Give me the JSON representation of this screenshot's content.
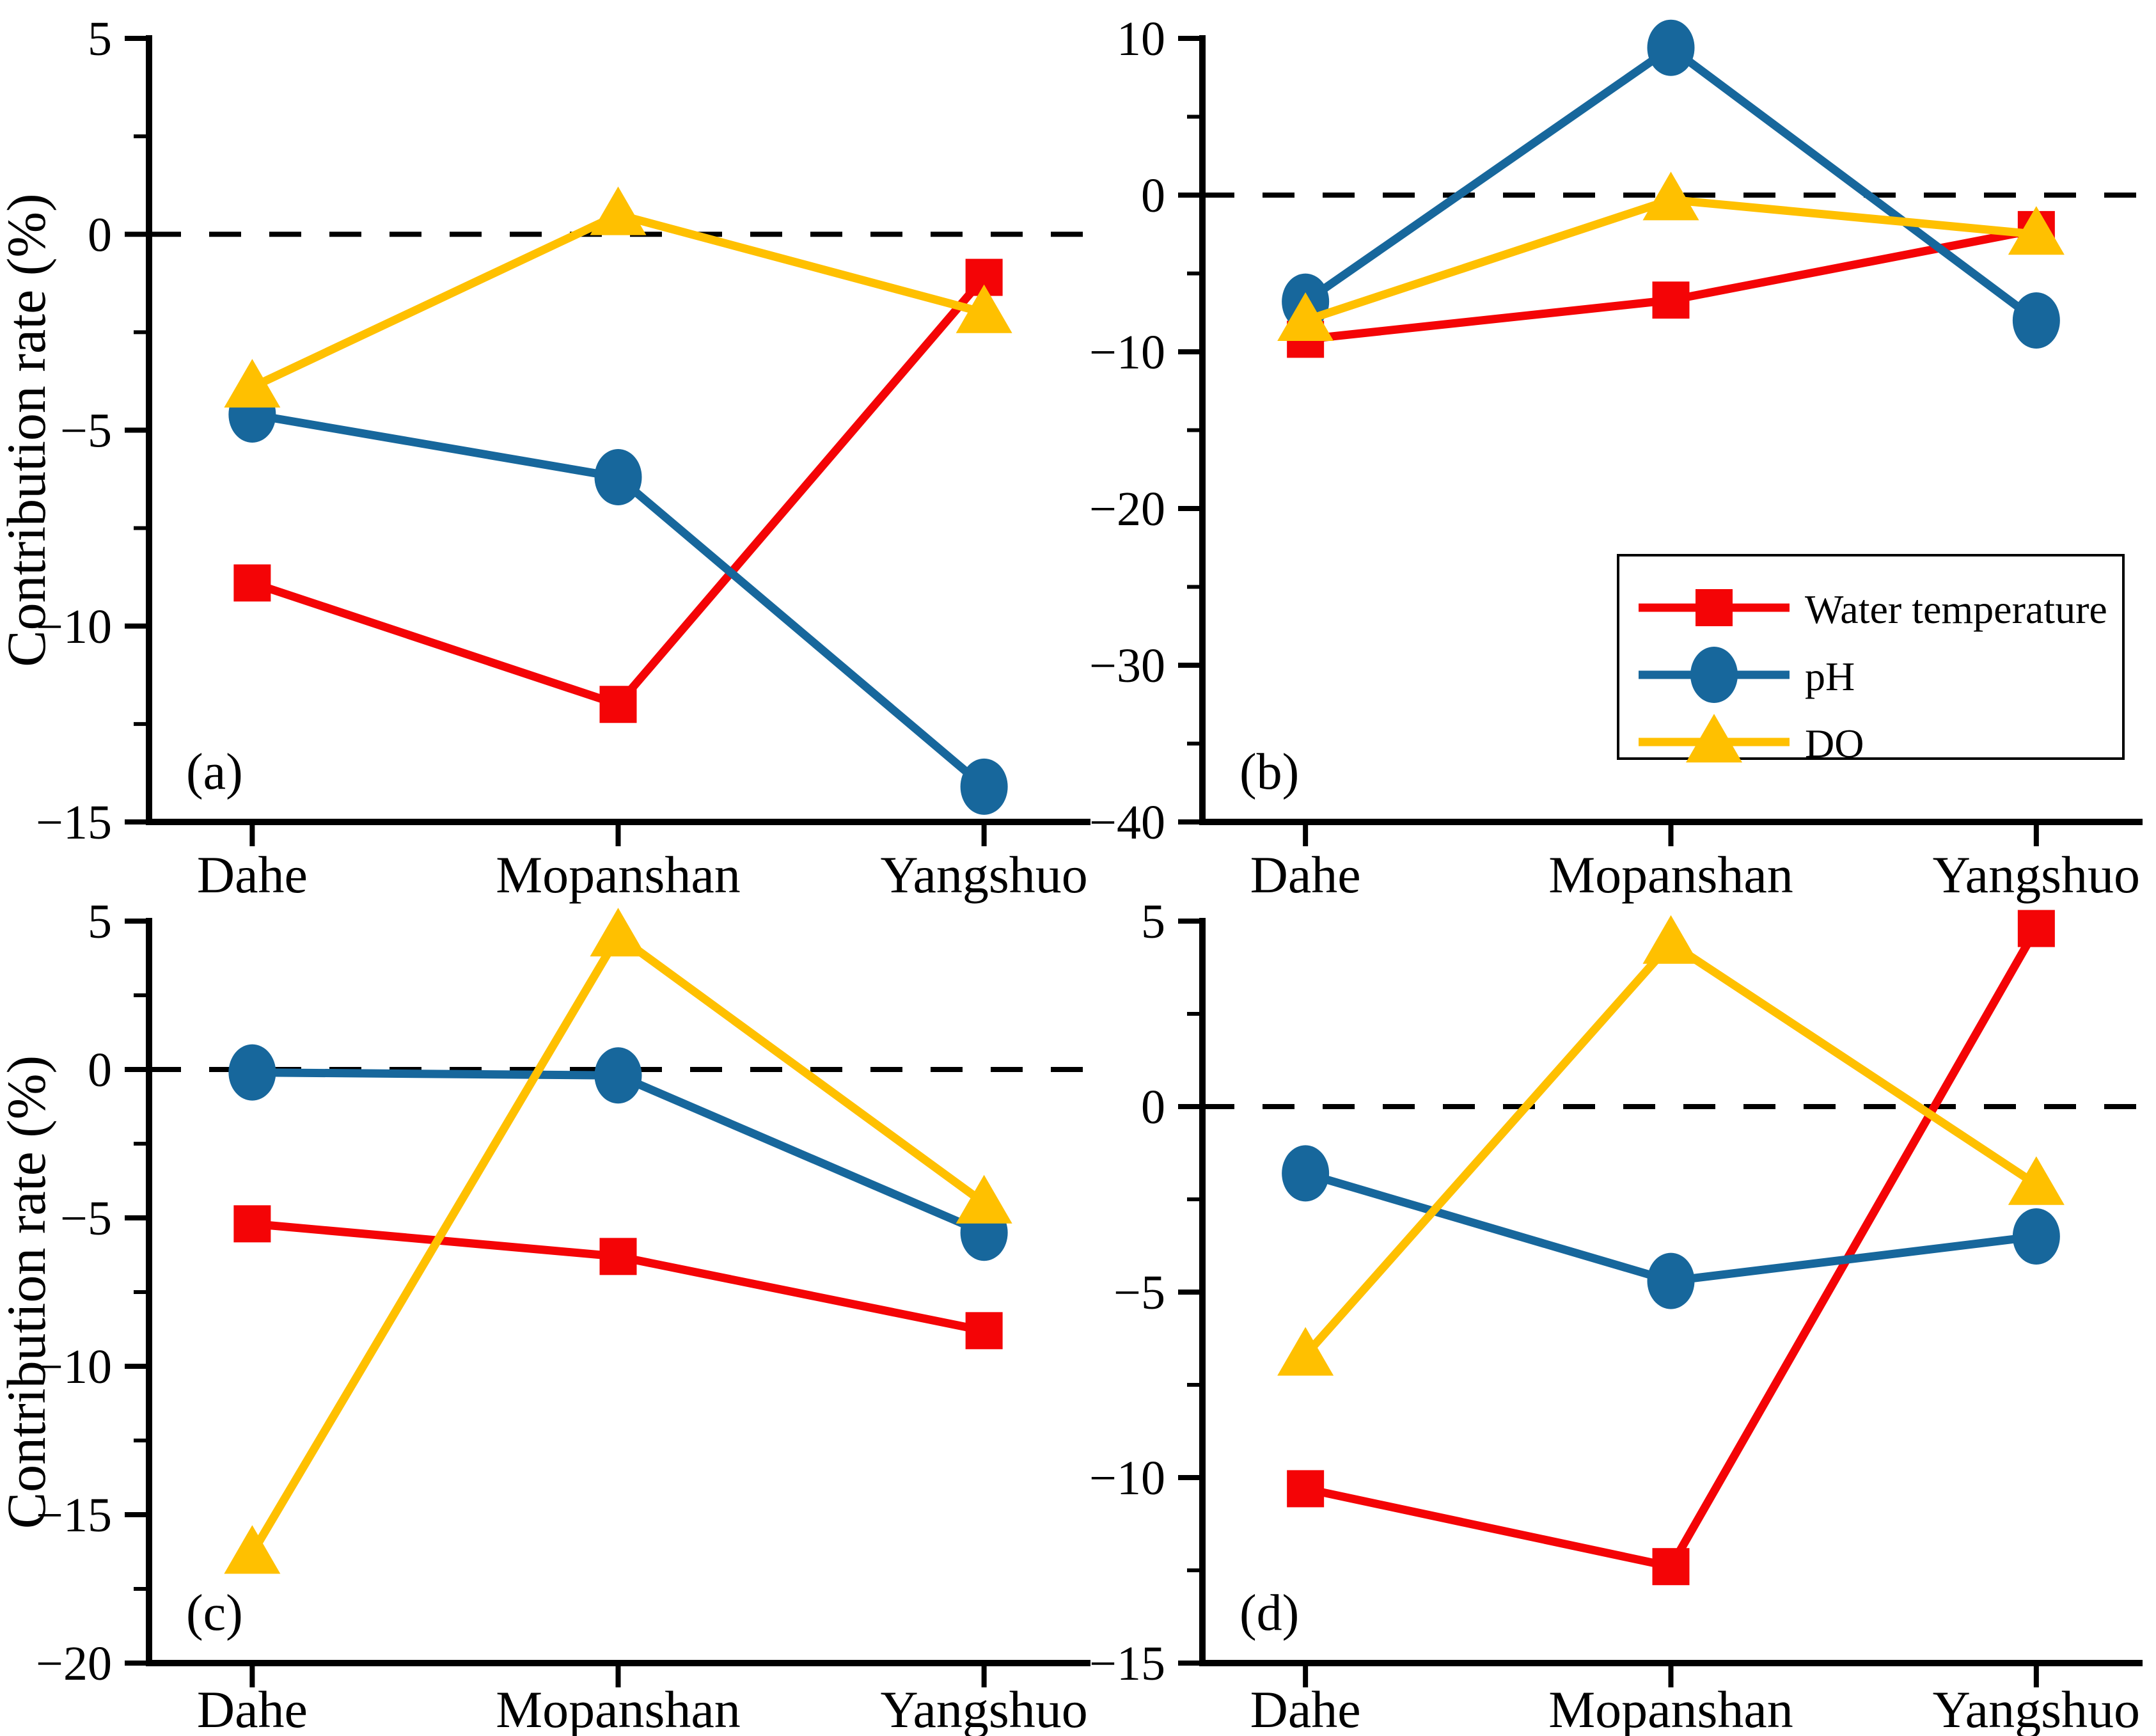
{
  "figure": {
    "background": "#ffffff",
    "ylabel": "Contribution rate (%)",
    "categories": [
      "Dahe",
      "Mopanshan",
      "Yangshuo"
    ],
    "series_styles": [
      {
        "name": "Water temperature",
        "marker": "square",
        "color": "#f40406"
      },
      {
        "name": "pH",
        "marker": "circle",
        "color": "#17679c"
      },
      {
        "name": "DO",
        "marker": "triangle",
        "color": "#ffc000"
      }
    ],
    "legend": {
      "location": "panel-b",
      "items": [
        "Water temperature",
        "pH",
        "DO"
      ]
    }
  },
  "chart_data": [
    {
      "type": "line",
      "panel_label": "(a)",
      "categories": [
        "Dahe",
        "Mopanshan",
        "Yangshuo"
      ],
      "ylabel": "Contribution rate (%)",
      "show_ylabel": true,
      "show_legend": false,
      "zero_reference_line": true,
      "ylim": [
        -15,
        5
      ],
      "yticks": [
        5,
        0,
        -5,
        -10,
        -15
      ],
      "ytick_labels": [
        "5",
        "0",
        "−5",
        "−10",
        "−15"
      ],
      "series": [
        {
          "name": "Water temperature",
          "values": [
            -8.9,
            -12.0,
            -1.1
          ]
        },
        {
          "name": "pH",
          "values": [
            -4.6,
            -6.2,
            -14.1
          ]
        },
        {
          "name": "DO",
          "values": [
            -3.9,
            0.5,
            -2.0
          ]
        }
      ]
    },
    {
      "type": "line",
      "panel_label": "(b)",
      "categories": [
        "Dahe",
        "Mopanshan",
        "Yangshuo"
      ],
      "ylabel": "",
      "show_ylabel": false,
      "show_legend": true,
      "zero_reference_line": true,
      "ylim": [
        -40,
        10
      ],
      "yticks": [
        10,
        0,
        -10,
        -20,
        -30,
        -40
      ],
      "ytick_labels": [
        "10",
        "0",
        "−10",
        "−20",
        "−30",
        "−40"
      ],
      "series": [
        {
          "name": "Water temperature",
          "values": [
            -9.2,
            -6.7,
            -2.2
          ]
        },
        {
          "name": "pH",
          "values": [
            -6.8,
            9.4,
            -8.0
          ]
        },
        {
          "name": "DO",
          "values": [
            -8.0,
            -0.3,
            -2.5
          ]
        }
      ]
    },
    {
      "type": "line",
      "panel_label": "(c)",
      "categories": [
        "Dahe",
        "Mopanshan",
        "Yangshuo"
      ],
      "ylabel": "Contribution rate (%)",
      "show_ylabel": true,
      "show_legend": false,
      "zero_reference_line": true,
      "ylim": [
        -20,
        5
      ],
      "yticks": [
        5,
        0,
        -5,
        -10,
        -15,
        -20
      ],
      "ytick_labels": [
        "5",
        "0",
        "−5",
        "−10",
        "−15",
        "−20"
      ],
      "series": [
        {
          "name": "Water temperature",
          "values": [
            -5.2,
            -6.3,
            -8.8
          ]
        },
        {
          "name": "pH",
          "values": [
            -0.1,
            -0.2,
            -5.5
          ]
        },
        {
          "name": "DO",
          "values": [
            -16.3,
            4.5,
            -4.5
          ]
        }
      ]
    },
    {
      "type": "line",
      "panel_label": "(d)",
      "categories": [
        "Dahe",
        "Mopanshan",
        "Yangshuo"
      ],
      "ylabel": "",
      "show_ylabel": false,
      "show_legend": false,
      "zero_reference_line": true,
      "ylim": [
        -15,
        5
      ],
      "yticks": [
        5,
        0,
        -5,
        -10,
        -15
      ],
      "ytick_labels": [
        "5",
        "0",
        "−5",
        "−10",
        "−15"
      ],
      "series": [
        {
          "name": "Water temperature",
          "values": [
            -10.3,
            -12.4,
            4.8
          ]
        },
        {
          "name": "pH",
          "values": [
            -1.8,
            -4.7,
            -3.5
          ]
        },
        {
          "name": "DO",
          "values": [
            -6.7,
            4.4,
            -2.1
          ]
        }
      ]
    }
  ]
}
